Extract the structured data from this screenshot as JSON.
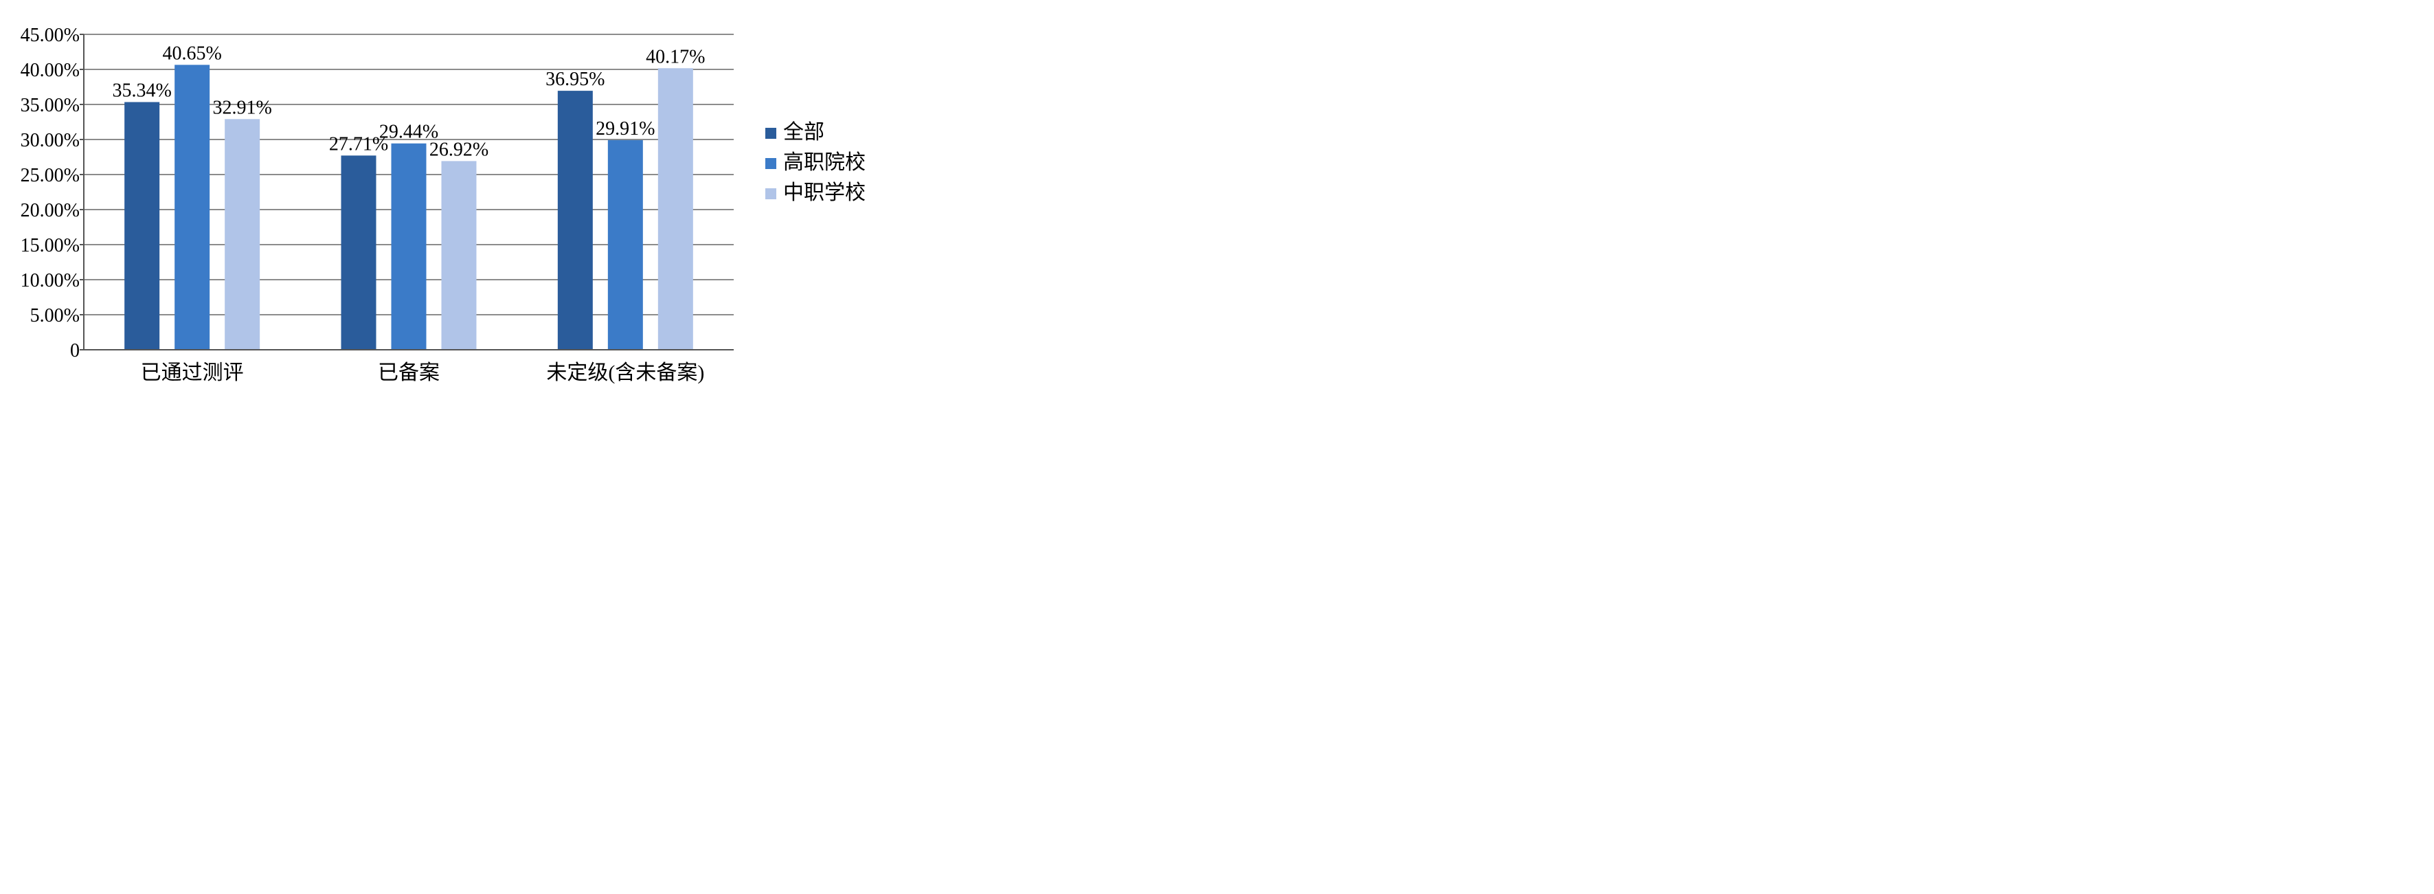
{
  "chart_data": {
    "type": "bar",
    "categories": [
      "已通过测评",
      "已备案",
      "未定级(含未备案)"
    ],
    "series": [
      {
        "name": "全部",
        "color": "#2a5c9b",
        "values": [
          35.34,
          27.71,
          36.95
        ],
        "labels": [
          "35.34%",
          "27.71%",
          "36.95%"
        ]
      },
      {
        "name": "高职院校",
        "color": "#3b7bc8",
        "values": [
          40.65,
          29.44,
          29.91
        ],
        "labels": [
          "40.65%",
          "29.44%",
          "29.91%"
        ]
      },
      {
        "name": "中职学校",
        "color": "#b0c4e8",
        "values": [
          32.91,
          26.92,
          40.17
        ],
        "labels": [
          "32.91%",
          "26.92%",
          "40.17%"
        ]
      }
    ],
    "ylim": [
      0,
      45
    ],
    "yticks": [
      0,
      5,
      10,
      15,
      20,
      25,
      30,
      35,
      40,
      45
    ],
    "ytick_labels": [
      "0",
      "5.00%",
      "10.00%",
      "15.00%",
      "20.00%",
      "25.00%",
      "30.00%",
      "35.00%",
      "40.00%",
      "45.00%"
    ],
    "grid": true,
    "legend_position": "right"
  }
}
